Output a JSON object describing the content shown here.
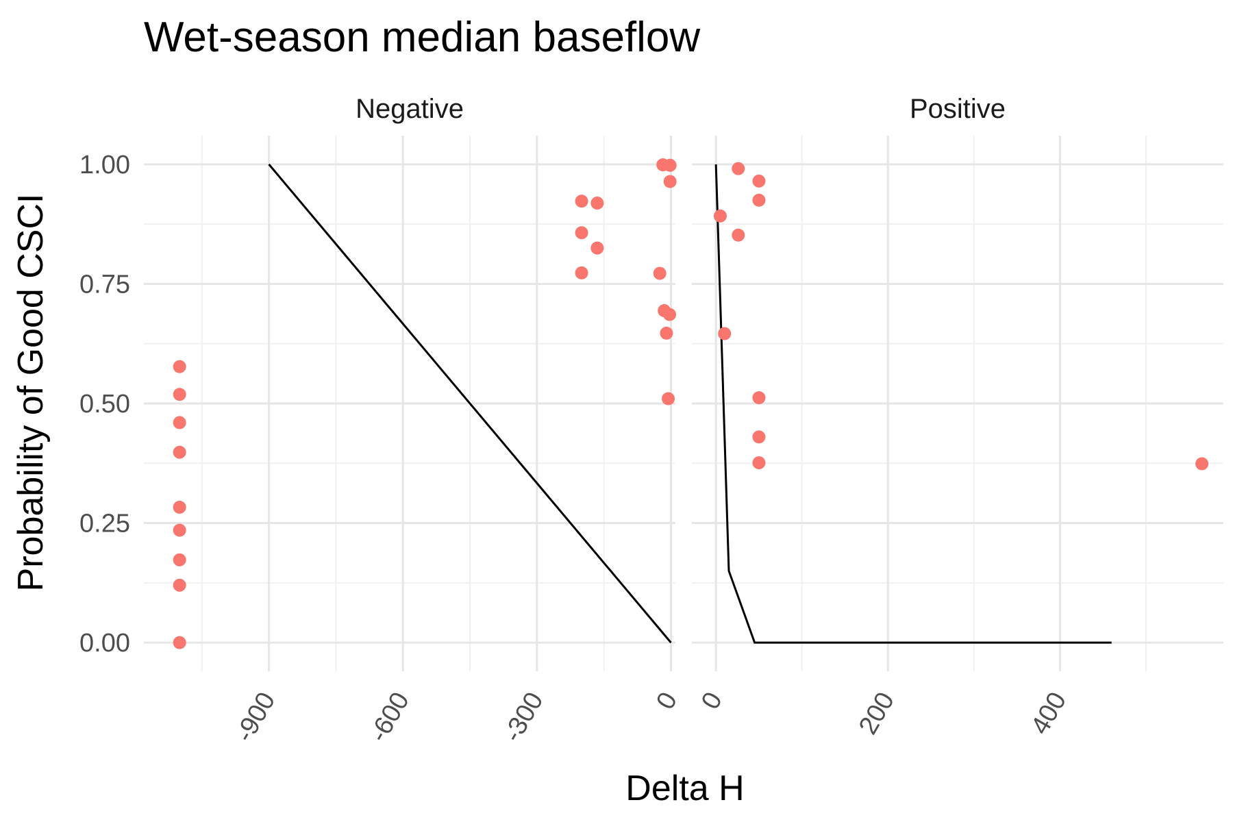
{
  "chart_data": {
    "type": "scatter",
    "title": "Wet-season median baseflow",
    "xlabel": "Delta H",
    "ylabel": "Probability of Good CSCI",
    "point_color": "#F8766D",
    "line_color": "#000000",
    "yticks": [
      "0.00",
      "0.25",
      "0.50",
      "0.75",
      "1.00"
    ],
    "ylim": [
      -0.06,
      1.06
    ],
    "panels": [
      {
        "label": "Negative",
        "xlim": [
          -1180,
          10
        ],
        "xticks": [
          {
            "value": -900,
            "label": "-900"
          },
          {
            "value": -600,
            "label": "-600"
          },
          {
            "value": -300,
            "label": "-300"
          },
          {
            "value": 0,
            "label": "0"
          }
        ],
        "minor_x": [
          -1050,
          -750,
          -450,
          -150
        ],
        "points": [
          {
            "x": -1100,
            "y": 0.0
          },
          {
            "x": -1100,
            "y": 0.12
          },
          {
            "x": -1100,
            "y": 0.173
          },
          {
            "x": -1100,
            "y": 0.235
          },
          {
            "x": -1100,
            "y": 0.283
          },
          {
            "x": -1100,
            "y": 0.398
          },
          {
            "x": -1100,
            "y": 0.46
          },
          {
            "x": -1100,
            "y": 0.519
          },
          {
            "x": -1100,
            "y": 0.577
          },
          {
            "x": -200,
            "y": 0.923
          },
          {
            "x": -165,
            "y": 0.919
          },
          {
            "x": -200,
            "y": 0.857
          },
          {
            "x": -165,
            "y": 0.825
          },
          {
            "x": -200,
            "y": 0.773
          },
          {
            "x": -25,
            "y": 0.772
          },
          {
            "x": -18,
            "y": 0.999
          },
          {
            "x": -2,
            "y": 0.998
          },
          {
            "x": -2,
            "y": 0.964
          },
          {
            "x": -15,
            "y": 0.694
          },
          {
            "x": -3,
            "y": 0.686
          },
          {
            "x": -10,
            "y": 0.647
          },
          {
            "x": -6,
            "y": 0.51
          }
        ],
        "curve": {
          "x": [
            -900,
            0
          ],
          "y": [
            1.0,
            0.0
          ]
        }
      },
      {
        "label": "Positive",
        "xlim": [
          -28,
          590
        ],
        "xticks": [
          {
            "value": 0,
            "label": "0"
          },
          {
            "value": 200,
            "label": "200"
          },
          {
            "value": 400,
            "label": "400"
          }
        ],
        "minor_x": [
          100,
          300,
          500
        ],
        "points": [
          {
            "x": 5,
            "y": 0.892
          },
          {
            "x": 26,
            "y": 0.991
          },
          {
            "x": 50,
            "y": 0.965
          },
          {
            "x": 50,
            "y": 0.925
          },
          {
            "x": 26,
            "y": 0.852
          },
          {
            "x": 10,
            "y": 0.646
          },
          {
            "x": 50,
            "y": 0.512
          },
          {
            "x": 50,
            "y": 0.43
          },
          {
            "x": 50,
            "y": 0.376
          },
          {
            "x": 565,
            "y": 0.374
          }
        ],
        "curve": {
          "x": [
            0,
            15,
            45,
            460
          ],
          "y": [
            1.0,
            0.15,
            0.0,
            0.0
          ]
        }
      }
    ]
  }
}
